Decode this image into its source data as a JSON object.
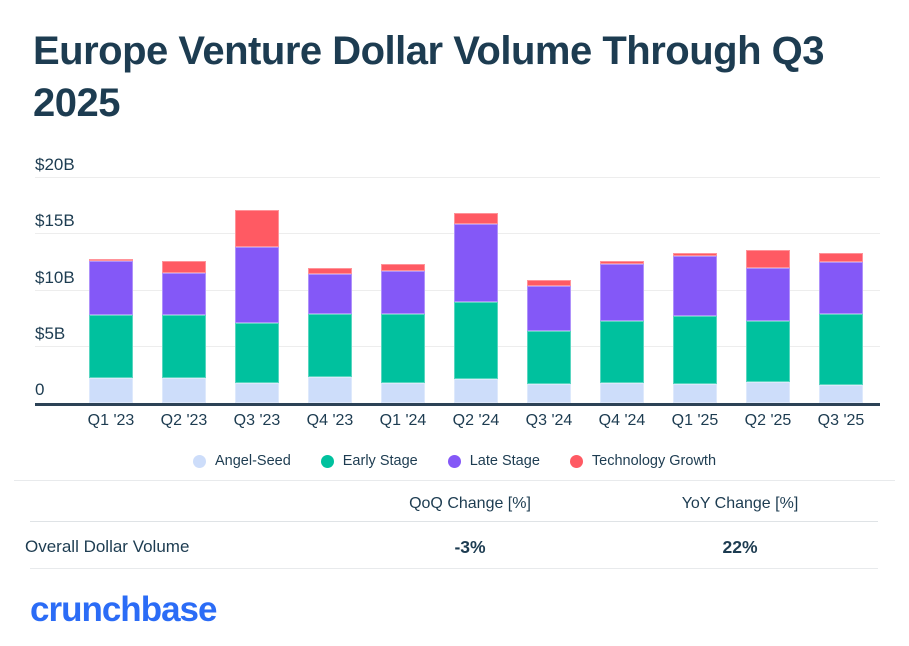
{
  "title": "Europe Venture Dollar Volume Through Q3 2025",
  "chart_data": {
    "type": "bar",
    "stacked": true,
    "title": "Europe Venture Dollar Volume Through Q3 2025",
    "units": "billions USD",
    "categories": [
      "Q1 '23",
      "Q2 '23",
      "Q3 '23",
      "Q4 '23",
      "Q1 '24",
      "Q2 '24",
      "Q3 '24",
      "Q4 '24",
      "Q1 '25",
      "Q2 '25",
      "Q3 '25"
    ],
    "series": [
      {
        "name": "Angel-Seed",
        "color": "#cdddfa",
        "values": [
          2.2,
          2.2,
          1.8,
          2.3,
          1.8,
          2.1,
          1.7,
          1.8,
          1.7,
          1.9,
          1.6
        ]
      },
      {
        "name": "Early Stage",
        "color": "#00c19e",
        "values": [
          5.6,
          5.6,
          5.3,
          5.6,
          6.1,
          6.9,
          4.7,
          5.5,
          6.0,
          5.4,
          6.3
        ]
      },
      {
        "name": "Late Stage",
        "color": "#8458f7",
        "values": [
          4.8,
          3.8,
          6.8,
          3.6,
          3.8,
          6.9,
          4.0,
          5.1,
          5.4,
          4.7,
          4.6
        ]
      },
      {
        "name": "Technology Growth",
        "color": "#ff5a63",
        "values": [
          0.2,
          1.0,
          3.3,
          0.5,
          0.7,
          1.0,
          0.5,
          0.2,
          0.2,
          1.6,
          0.8
        ]
      }
    ],
    "totals": [
      12.8,
      12.6,
      17.2,
      12.0,
      12.4,
      16.9,
      10.9,
      12.6,
      13.3,
      13.6,
      13.3
    ],
    "ylim": [
      0,
      20
    ],
    "yticks": [
      {
        "value": 20,
        "label": "$20B"
      },
      {
        "value": 15,
        "label": "$15B"
      },
      {
        "value": 10,
        "label": "$10B"
      },
      {
        "value": 5,
        "label": "$5B"
      },
      {
        "value": 0,
        "label": "0"
      }
    ],
    "grid": true,
    "legend_position": "bottom"
  },
  "table": {
    "headers": {
      "qoq": "QoQ Change [%]",
      "yoy": "YoY Change [%]"
    },
    "rows": [
      {
        "label": "Overall Dollar Volume",
        "qoq": "-3%",
        "yoy": "22%"
      }
    ]
  },
  "branding": {
    "logo_text": "crunchbase",
    "logo_color": "#2b6cf6"
  },
  "colors": {
    "navy_text": "#1d3c51",
    "gridline": "#ededed",
    "axis_line": "#2c4256",
    "angel_seed": "#cdddfa",
    "early_stage": "#00c19e",
    "late_stage": "#8458f7",
    "technology_growth": "#ff5a63"
  }
}
